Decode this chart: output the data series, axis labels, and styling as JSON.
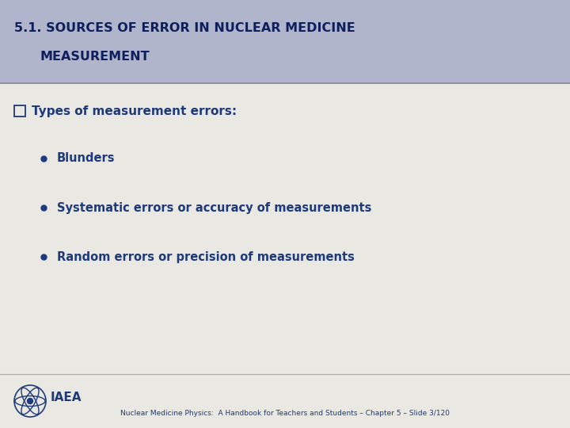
{
  "title_line1": "5.1. SOURCES OF ERROR IN NUCLEAR MEDICINE",
  "title_line2": "MEASUREMENT",
  "header_bg_color": "#b0b5cc",
  "body_bg_color": "#e9e8e3",
  "title_color": "#0d1f5c",
  "text_color": "#1e3a7a",
  "bullets": [
    "Blunders",
    "Systematic errors or accuracy of measurements",
    "Random errors or precision of measurements"
  ],
  "footer_text": "Nuclear Medicine Physics:  A Handbook for Teachers and Students – Chapter 5 – Slide 3/120",
  "iaea_text": "IAEA",
  "title_fontsize": 11.5,
  "section_fontsize": 11,
  "bullet_fontsize": 10.5,
  "footer_fontsize": 6.5,
  "iaea_fontsize": 11
}
